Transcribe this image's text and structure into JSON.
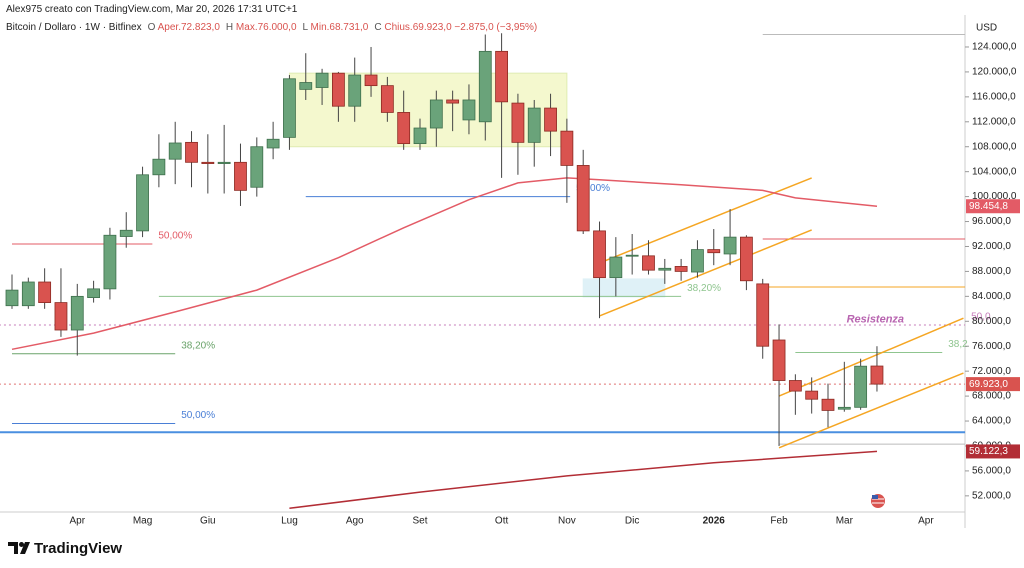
{
  "header": {
    "credit": "Alex975 creato con TradingView.com, Mar 20, 2026 17:31 UTC+1",
    "symbol": "Bitcoin / Dollaro · 1W · Bitfinex",
    "fields": [
      {
        "key": "O",
        "value": "Aper.72.823,0"
      },
      {
        "key": "H",
        "value": "Max.76.000,0"
      },
      {
        "key": "L",
        "value": "Min.68.731,0"
      },
      {
        "key": "C",
        "value": "Chius.69.923,0"
      }
    ],
    "change": "−2.875,0 (−3,95%)"
  },
  "footer": {
    "brand": "TradingView"
  },
  "chart_data": {
    "type": "candlestick",
    "currency": "USD",
    "up_color": "#6aa37a",
    "down_color": "#d9534f",
    "grid": false,
    "categories": [
      null,
      null,
      null,
      null,
      "Apr",
      null,
      null,
      null,
      "Mag",
      null,
      null,
      null,
      "Giu",
      null,
      null,
      null,
      null,
      "Lug",
      null,
      null,
      null,
      "Ago",
      null,
      null,
      null,
      "Set",
      null,
      null,
      null,
      null,
      "Ott",
      null,
      null,
      null,
      "Nov",
      null,
      null,
      null,
      "Dic",
      null,
      null,
      null,
      null,
      "2026",
      null,
      null,
      null,
      "Feb",
      null,
      null,
      null,
      "Mar",
      null,
      null,
      null,
      null,
      "Apr",
      null
    ],
    "open": [
      82500,
      82500,
      86300,
      83000,
      78600,
      83800,
      85200,
      93600,
      94500,
      103500,
      106000,
      108700,
      105500,
      105300,
      105500,
      101500,
      107800,
      109500,
      117200,
      117500,
      119800,
      114500,
      119500,
      117800,
      113500,
      108500,
      111000,
      115500,
      112300,
      112000,
      123300,
      115000,
      108700,
      114200,
      110500,
      105000,
      94500,
      87000,
      90500,
      90500,
      88200,
      88800,
      87900,
      91500,
      90800,
      93500,
      86000,
      77000,
      70500,
      68800,
      67500,
      65900,
      66200,
      72823,
      null,
      null,
      null,
      null
    ],
    "high": [
      87500,
      87000,
      88500,
      88500,
      86000,
      86500,
      95000,
      97500,
      104800,
      110000,
      112000,
      110500,
      110000,
      111500,
      108500,
      109500,
      112000,
      119500,
      123000,
      120500,
      120000,
      122300,
      124000,
      119200,
      117000,
      112500,
      117000,
      117000,
      118000,
      126000,
      126200,
      116500,
      115500,
      116500,
      112500,
      107500,
      96000,
      93500,
      94000,
      93000,
      90000,
      90000,
      93000,
      94800,
      98000,
      93800,
      86800,
      79500,
      71500,
      71000,
      70000,
      73500,
      74000,
      76000,
      null,
      null,
      null,
      null
    ],
    "low": [
      82000,
      82000,
      82000,
      77500,
      74500,
      83000,
      83500,
      91800,
      93500,
      101500,
      102000,
      101500,
      100500,
      100500,
      98500,
      100000,
      106000,
      107500,
      115500,
      114700,
      112000,
      112000,
      116000,
      112000,
      107500,
      107500,
      108000,
      110500,
      110000,
      109000,
      103000,
      103500,
      104800,
      106500,
      99000,
      94000,
      80500,
      84000,
      87500,
      87500,
      86000,
      86500,
      87000,
      89000,
      89000,
      85000,
      74000,
      60000,
      65000,
      65200,
      63000,
      65500,
      65800,
      68731,
      null,
      null,
      null,
      null
    ],
    "close": [
      85000,
      86300,
      83000,
      78600,
      84000,
      85200,
      93800,
      94600,
      103500,
      106000,
      108600,
      105500,
      105300,
      105500,
      101000,
      108000,
      109200,
      118900,
      118300,
      119800,
      114500,
      119500,
      117800,
      113500,
      108500,
      111000,
      115500,
      115000,
      115500,
      123300,
      115200,
      108700,
      114200,
      110500,
      105000,
      94500,
      87000,
      90300,
      90600,
      88200,
      88500,
      88000,
      91500,
      91000,
      93500,
      86500,
      76000,
      70500,
      68800,
      67500,
      65700,
      66200,
      72800,
      69923,
      null,
      null,
      null,
      null
    ],
    "overlays": [
      {
        "color": "#e35b66",
        "x": [
          0,
          5,
          10,
          15,
          20,
          24,
          28,
          31,
          34,
          36,
          41,
          46,
          48,
          53
        ],
        "values": [
          75500,
          78100,
          81500,
          85000,
          90200,
          95000,
          99500,
          102200,
          103000,
          102700,
          101900,
          101000,
          99800,
          98454.8
        ]
      },
      {
        "color": "#b22d35",
        "x": [
          17,
          25,
          34,
          43,
          53
        ],
        "values": [
          50000,
          52600,
          55200,
          57300,
          59122.3
        ]
      }
    ],
    "ylim": [
      49730,
      129130
    ],
    "yticks": [
      {
        "value": 52000,
        "label": "52.000,0"
      },
      {
        "value": 56000,
        "label": "56.000,0"
      },
      {
        "value": 60000,
        "label": "60.000,0"
      },
      {
        "value": 64000,
        "label": "64.000,0"
      },
      {
        "value": 68000,
        "label": "68.000,0"
      },
      {
        "value": 72000,
        "label": "72.000,0"
      },
      {
        "value": 76000,
        "label": "76.000,0"
      },
      {
        "value": 80000,
        "label": "80.000,0"
      },
      {
        "value": 84000,
        "label": "84.000,0"
      },
      {
        "value": 88000,
        "label": "88.000,0"
      },
      {
        "value": 92000,
        "label": "92.000,0"
      },
      {
        "value": 96000,
        "label": "96.000,0"
      },
      {
        "value": 100000,
        "label": "100.000,0"
      },
      {
        "value": 104000,
        "label": "104.000,0"
      },
      {
        "value": 108000,
        "label": "108.000,0"
      },
      {
        "value": 112000,
        "label": "112.000,0"
      },
      {
        "value": 116000,
        "label": "116.000,0"
      },
      {
        "value": 120000,
        "label": "120.000,0"
      },
      {
        "value": 124000,
        "label": "124.000,0"
      }
    ],
    "price_markers": [
      {
        "value": 98454.8,
        "label": "98.454,8",
        "color": "#e35b66"
      },
      {
        "value": 69923,
        "label": "69.923,0",
        "color": "#d9534f"
      },
      {
        "value": 59122.3,
        "label": "59.122,3",
        "color": "#b22d35"
      }
    ],
    "levels": [
      {
        "value": 92400,
        "x": [
          0,
          8.6
        ],
        "color": "#e35b66",
        "label": "50,00%"
      },
      {
        "value": 74800,
        "x": [
          0,
          10
        ],
        "color": "#6aa36a",
        "label": "38,20%"
      },
      {
        "value": 63600,
        "x": [
          0,
          10
        ],
        "color": "#4a7fd6",
        "label": "50,00%"
      },
      {
        "value": 62200,
        "x": [
          -0.8,
          58.4
        ],
        "color": "#4a8fe0",
        "width": 2
      },
      {
        "value": 60300,
        "x": [
          47,
          58.4
        ],
        "color": "#bbbbbb"
      },
      {
        "value": 100000,
        "x": [
          18,
          34.2
        ],
        "color": "#4a7fd6",
        "label": "50,00%"
      },
      {
        "value": 84000,
        "x": [
          9,
          41
        ],
        "color": "#8fc58f",
        "label": "38,20%"
      },
      {
        "value": 93200,
        "x": [
          46,
          58.4
        ],
        "color": "#e35b66"
      },
      {
        "value": 85500,
        "x": [
          46,
          58.4
        ],
        "color": "#f5a623"
      },
      {
        "value": 75000,
        "x": [
          48,
          57
        ],
        "color": "#8fc58f",
        "label": "38,2"
      },
      {
        "value": 79400,
        "x": [
          -0.8,
          58.4
        ],
        "color": "#c77dbb",
        "dash": true,
        "label": "50,0"
      },
      {
        "value": 126000,
        "x": [
          46,
          58.4
        ],
        "color": "#bbbbbb"
      },
      {
        "value": 69923,
        "x": [
          -0.8,
          58.4
        ],
        "color": "#e07070",
        "dash": true
      }
    ],
    "annotations": [
      {
        "text": "Resistenza",
        "value": 80300,
        "x": 52.9,
        "color": "#b864b0"
      }
    ],
    "boxes": [
      {
        "x": [
          17,
          34
        ],
        "values": [
          108000,
          119800
        ],
        "color": "#f2f7c2",
        "stroke": "#d8e8a0"
      },
      {
        "x": [
          35,
          40
        ],
        "values": [
          83900,
          86800
        ],
        "color": "#d8eef6",
        "stroke": "#d8eef6"
      }
    ],
    "trendlines": [
      {
        "x": [
          36,
          49
        ],
        "values": [
          80850,
          94650
        ],
        "color": "#f5a623"
      },
      {
        "x": [
          36,
          49
        ],
        "values": [
          89350,
          103000
        ],
        "color": "#f5a623"
      },
      {
        "x": [
          47,
          58.3
        ],
        "values": [
          59700,
          71700
        ],
        "color": "#f5a623"
      },
      {
        "x": [
          47,
          58.3
        ],
        "values": [
          68000,
          80500
        ],
        "color": "#f5a623"
      }
    ]
  }
}
